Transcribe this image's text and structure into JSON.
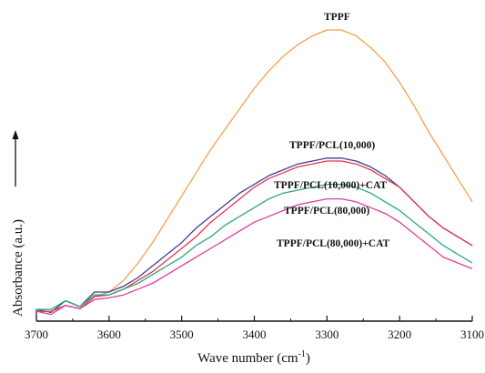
{
  "chart_data": {
    "type": "line",
    "xlabel": "Wave number (cm⁻¹)",
    "ylabel": "Absorbance (a.u.)",
    "xlim": [
      3700,
      3100
    ],
    "x_reversed": true,
    "x_ticks": [
      "3700",
      "3600",
      "3500",
      "3400",
      "3300",
      "3200",
      "3100"
    ],
    "x_tick_values": [
      3700,
      3600,
      3500,
      3400,
      3300,
      3200,
      3100
    ],
    "y_ticks_shown": false,
    "grid": false,
    "legend": "inline labels",
    "series": [
      {
        "name": "TPPF",
        "color": "#f5a04a",
        "x": [
          3700,
          3680,
          3660,
          3640,
          3620,
          3600,
          3580,
          3560,
          3540,
          3520,
          3500,
          3480,
          3460,
          3440,
          3420,
          3400,
          3380,
          3360,
          3340,
          3320,
          3300,
          3290,
          3280,
          3260,
          3240,
          3220,
          3200,
          3180,
          3160,
          3140,
          3120,
          3100
        ],
        "y": [
          0.02,
          0.04,
          0.04,
          0.05,
          0.07,
          0.1,
          0.14,
          0.2,
          0.27,
          0.35,
          0.43,
          0.51,
          0.59,
          0.66,
          0.73,
          0.8,
          0.86,
          0.91,
          0.95,
          0.98,
          1.0,
          1.0,
          1.0,
          0.98,
          0.94,
          0.89,
          0.82,
          0.74,
          0.65,
          0.57,
          0.49,
          0.41
        ]
      },
      {
        "name": "TPPF/PCL(10,000)",
        "color": "#3a3f98",
        "x": [
          3700,
          3680,
          3660,
          3640,
          3620,
          3600,
          3580,
          3560,
          3540,
          3520,
          3500,
          3480,
          3460,
          3440,
          3420,
          3400,
          3380,
          3360,
          3340,
          3320,
          3300,
          3290,
          3280,
          3260,
          3240,
          3220,
          3200,
          3180,
          3160,
          3140,
          3120,
          3100
        ],
        "y": [
          0.02,
          0.04,
          0.05,
          0.06,
          0.08,
          0.1,
          0.12,
          0.15,
          0.19,
          0.23,
          0.27,
          0.32,
          0.36,
          0.4,
          0.44,
          0.47,
          0.5,
          0.52,
          0.54,
          0.55,
          0.56,
          0.56,
          0.56,
          0.55,
          0.53,
          0.5,
          0.46,
          0.41,
          0.36,
          0.32,
          0.29,
          0.26
        ]
      },
      {
        "name": "TPPF/PCL(10,000)+CAT",
        "color": "#e8344a",
        "x": [
          3700,
          3680,
          3660,
          3640,
          3620,
          3600,
          3580,
          3560,
          3540,
          3520,
          3500,
          3480,
          3460,
          3440,
          3420,
          3400,
          3380,
          3360,
          3340,
          3320,
          3300,
          3290,
          3280,
          3260,
          3240,
          3220,
          3200,
          3180,
          3160,
          3140,
          3120,
          3100
        ],
        "y": [
          0.02,
          0.04,
          0.04,
          0.05,
          0.07,
          0.09,
          0.11,
          0.14,
          0.17,
          0.21,
          0.25,
          0.29,
          0.34,
          0.38,
          0.42,
          0.46,
          0.49,
          0.51,
          0.53,
          0.54,
          0.55,
          0.55,
          0.55,
          0.54,
          0.52,
          0.49,
          0.46,
          0.41,
          0.36,
          0.32,
          0.29,
          0.26
        ]
      },
      {
        "name": "TPPF/PCL(80,000)",
        "color": "#2aa87a",
        "x": [
          3700,
          3680,
          3660,
          3640,
          3620,
          3600,
          3580,
          3560,
          3540,
          3520,
          3500,
          3480,
          3460,
          3440,
          3420,
          3400,
          3380,
          3360,
          3340,
          3320,
          3300,
          3290,
          3280,
          3260,
          3240,
          3220,
          3200,
          3180,
          3160,
          3140,
          3120,
          3100
        ],
        "y": [
          0.02,
          0.05,
          0.05,
          0.06,
          0.07,
          0.09,
          0.11,
          0.13,
          0.16,
          0.19,
          0.22,
          0.26,
          0.29,
          0.33,
          0.36,
          0.39,
          0.42,
          0.44,
          0.45,
          0.46,
          0.47,
          0.47,
          0.47,
          0.46,
          0.44,
          0.41,
          0.38,
          0.34,
          0.3,
          0.26,
          0.23,
          0.2
        ]
      },
      {
        "name": "TPPF/PCL(80,000)+CAT",
        "color": "#e23a9a",
        "x": [
          3700,
          3680,
          3660,
          3640,
          3620,
          3600,
          3580,
          3560,
          3540,
          3520,
          3500,
          3480,
          3460,
          3440,
          3420,
          3400,
          3380,
          3360,
          3340,
          3320,
          3300,
          3290,
          3280,
          3260,
          3240,
          3220,
          3200,
          3180,
          3160,
          3140,
          3120,
          3100
        ],
        "y": [
          0.02,
          0.03,
          0.04,
          0.05,
          0.06,
          0.08,
          0.09,
          0.11,
          0.13,
          0.16,
          0.19,
          0.22,
          0.25,
          0.28,
          0.31,
          0.34,
          0.36,
          0.38,
          0.4,
          0.41,
          0.42,
          0.42,
          0.42,
          0.41,
          0.39,
          0.37,
          0.34,
          0.3,
          0.26,
          0.22,
          0.2,
          0.18
        ]
      }
    ]
  }
}
